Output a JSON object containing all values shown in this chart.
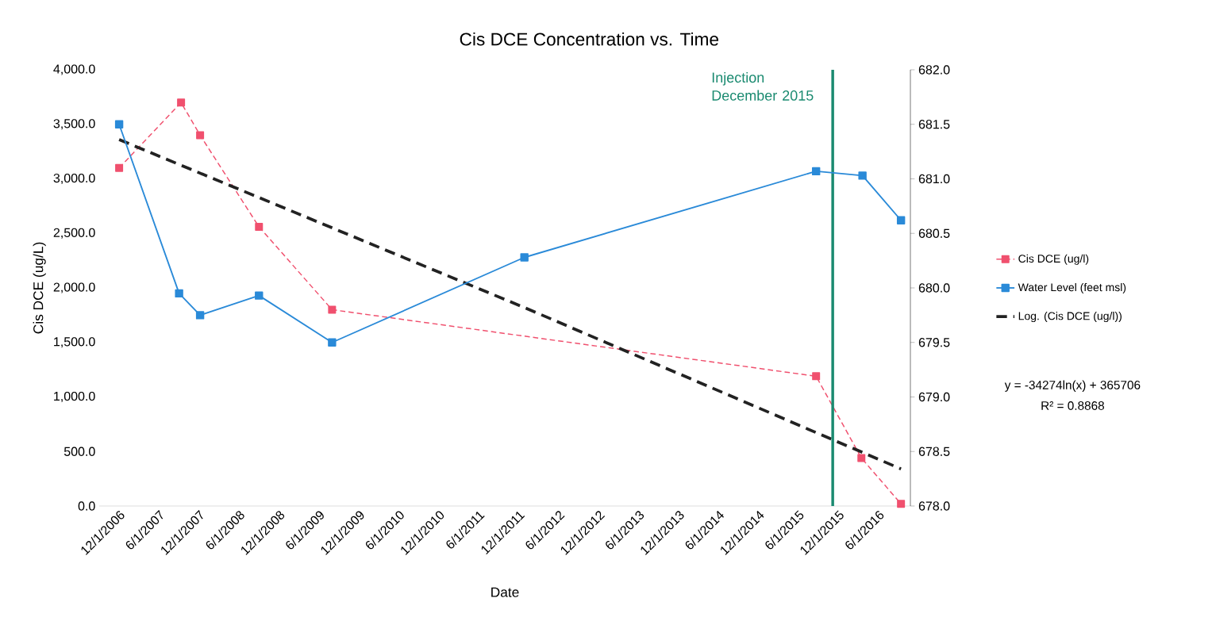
{
  "chart_data": {
    "type": "line",
    "title": "Cis DCE Concentration vs. Time",
    "xlabel": "Date",
    "ylabel": "Cis DCE (ug/L)",
    "x": [
      "2006-12-01",
      "2007-09-10",
      "2007-12-06",
      "2008-08-31",
      "2009-07-31",
      "2015-08-21",
      "2016-03-15",
      "2016-09-12"
    ],
    "series": [
      {
        "name": "Cis DCE (ug/l)",
        "color": "#f0506e",
        "marker": "square",
        "line_style": "dashed",
        "values": [
          3100,
          3700,
          3400,
          2560,
          1800,
          1190,
          440,
          20
        ]
      },
      {
        "name": "Water Level (feet msl)",
        "color": "#2a8ad8",
        "marker": "square",
        "line_style": "solid",
        "axis": "y2",
        "x": [
          "2006-12-01",
          "2007-09-01",
          "2007-12-06",
          "2008-08-31",
          "2009-07-31",
          "2011-12-27",
          "2015-08-21",
          "2016-03-20",
          "2016-09-12"
        ],
        "values": [
          681.5,
          679.95,
          679.75,
          679.93,
          679.5,
          680.28,
          681.07,
          681.03,
          680.62
        ]
      },
      {
        "name": "Log. (Cis DCE (ug/l))",
        "type": "line",
        "color": "#222222",
        "marker": "none",
        "line_style": "dashed",
        "x": [
          "2006-12-01",
          "2011-12-27",
          "2016-09-12"
        ],
        "values": [
          3360,
          1820,
          340
        ]
      }
    ],
    "xlim": [
      "2006-09-01",
      "2016-10-25"
    ],
    "xticks": [
      {
        "value": "2006-12-01",
        "label": "12/1/2006"
      },
      {
        "value": "2007-06-01",
        "label": "6/1/2007"
      },
      {
        "value": "2007-12-01",
        "label": "12/1/2007"
      },
      {
        "value": "2008-06-01",
        "label": "6/1/2008"
      },
      {
        "value": "2008-12-01",
        "label": "12/1/2008"
      },
      {
        "value": "2009-06-01",
        "label": "6/1/2009"
      },
      {
        "value": "2009-12-01",
        "label": "12/1/2009"
      },
      {
        "value": "2010-06-01",
        "label": "6/1/2010"
      },
      {
        "value": "2010-12-01",
        "label": "12/1/2010"
      },
      {
        "value": "2011-06-01",
        "label": "6/1/2011"
      },
      {
        "value": "2011-12-01",
        "label": "12/1/2011"
      },
      {
        "value": "2012-06-01",
        "label": "6/1/2012"
      },
      {
        "value": "2012-12-01",
        "label": "12/1/2012"
      },
      {
        "value": "2013-06-01",
        "label": "6/1/2013"
      },
      {
        "value": "2013-12-01",
        "label": "12/1/2013"
      },
      {
        "value": "2014-06-01",
        "label": "6/1/2014"
      },
      {
        "value": "2014-12-01",
        "label": "12/1/2014"
      },
      {
        "value": "2015-06-01",
        "label": "6/1/2015"
      },
      {
        "value": "2015-12-01",
        "label": "12/1/2015"
      },
      {
        "value": "2016-06-01",
        "label": "6/1/2016"
      }
    ],
    "ylim": [
      0,
      4000
    ],
    "yticks": [
      {
        "value": 0,
        "label": "0.0"
      },
      {
        "value": 500,
        "label": "500.0"
      },
      {
        "value": 1000,
        "label": "1,000.0"
      },
      {
        "value": 1500,
        "label": "1,500.0"
      },
      {
        "value": 2000,
        "label": "2,000.0"
      },
      {
        "value": 2500,
        "label": "2,500.0"
      },
      {
        "value": 3000,
        "label": "3,000.0"
      },
      {
        "value": 3500,
        "label": "3,500.0"
      },
      {
        "value": 4000,
        "label": "4,000.0"
      }
    ],
    "y2lim": [
      678,
      682
    ],
    "y2ticks": [
      {
        "value": 678,
        "label": "678.0"
      },
      {
        "value": 678.5,
        "label": "678.5"
      },
      {
        "value": 679,
        "label": "679.0"
      },
      {
        "value": 679.5,
        "label": "679.5"
      },
      {
        "value": 680,
        "label": "680.0"
      },
      {
        "value": 680.5,
        "label": "680.5"
      },
      {
        "value": 681,
        "label": "681.0"
      },
      {
        "value": 681.5,
        "label": "681.5"
      },
      {
        "value": 682,
        "label": "682.0"
      }
    ],
    "ref_lines": [
      {
        "axis": "x",
        "value": "2015-11-05",
        "label": "Injection December 2015",
        "color": "#1a8a70",
        "line_style": "solid"
      }
    ],
    "annotations": [
      "y = -34274ln(x) + 365706",
      "R² = 0.8868"
    ],
    "legend": "right",
    "grid": false
  }
}
